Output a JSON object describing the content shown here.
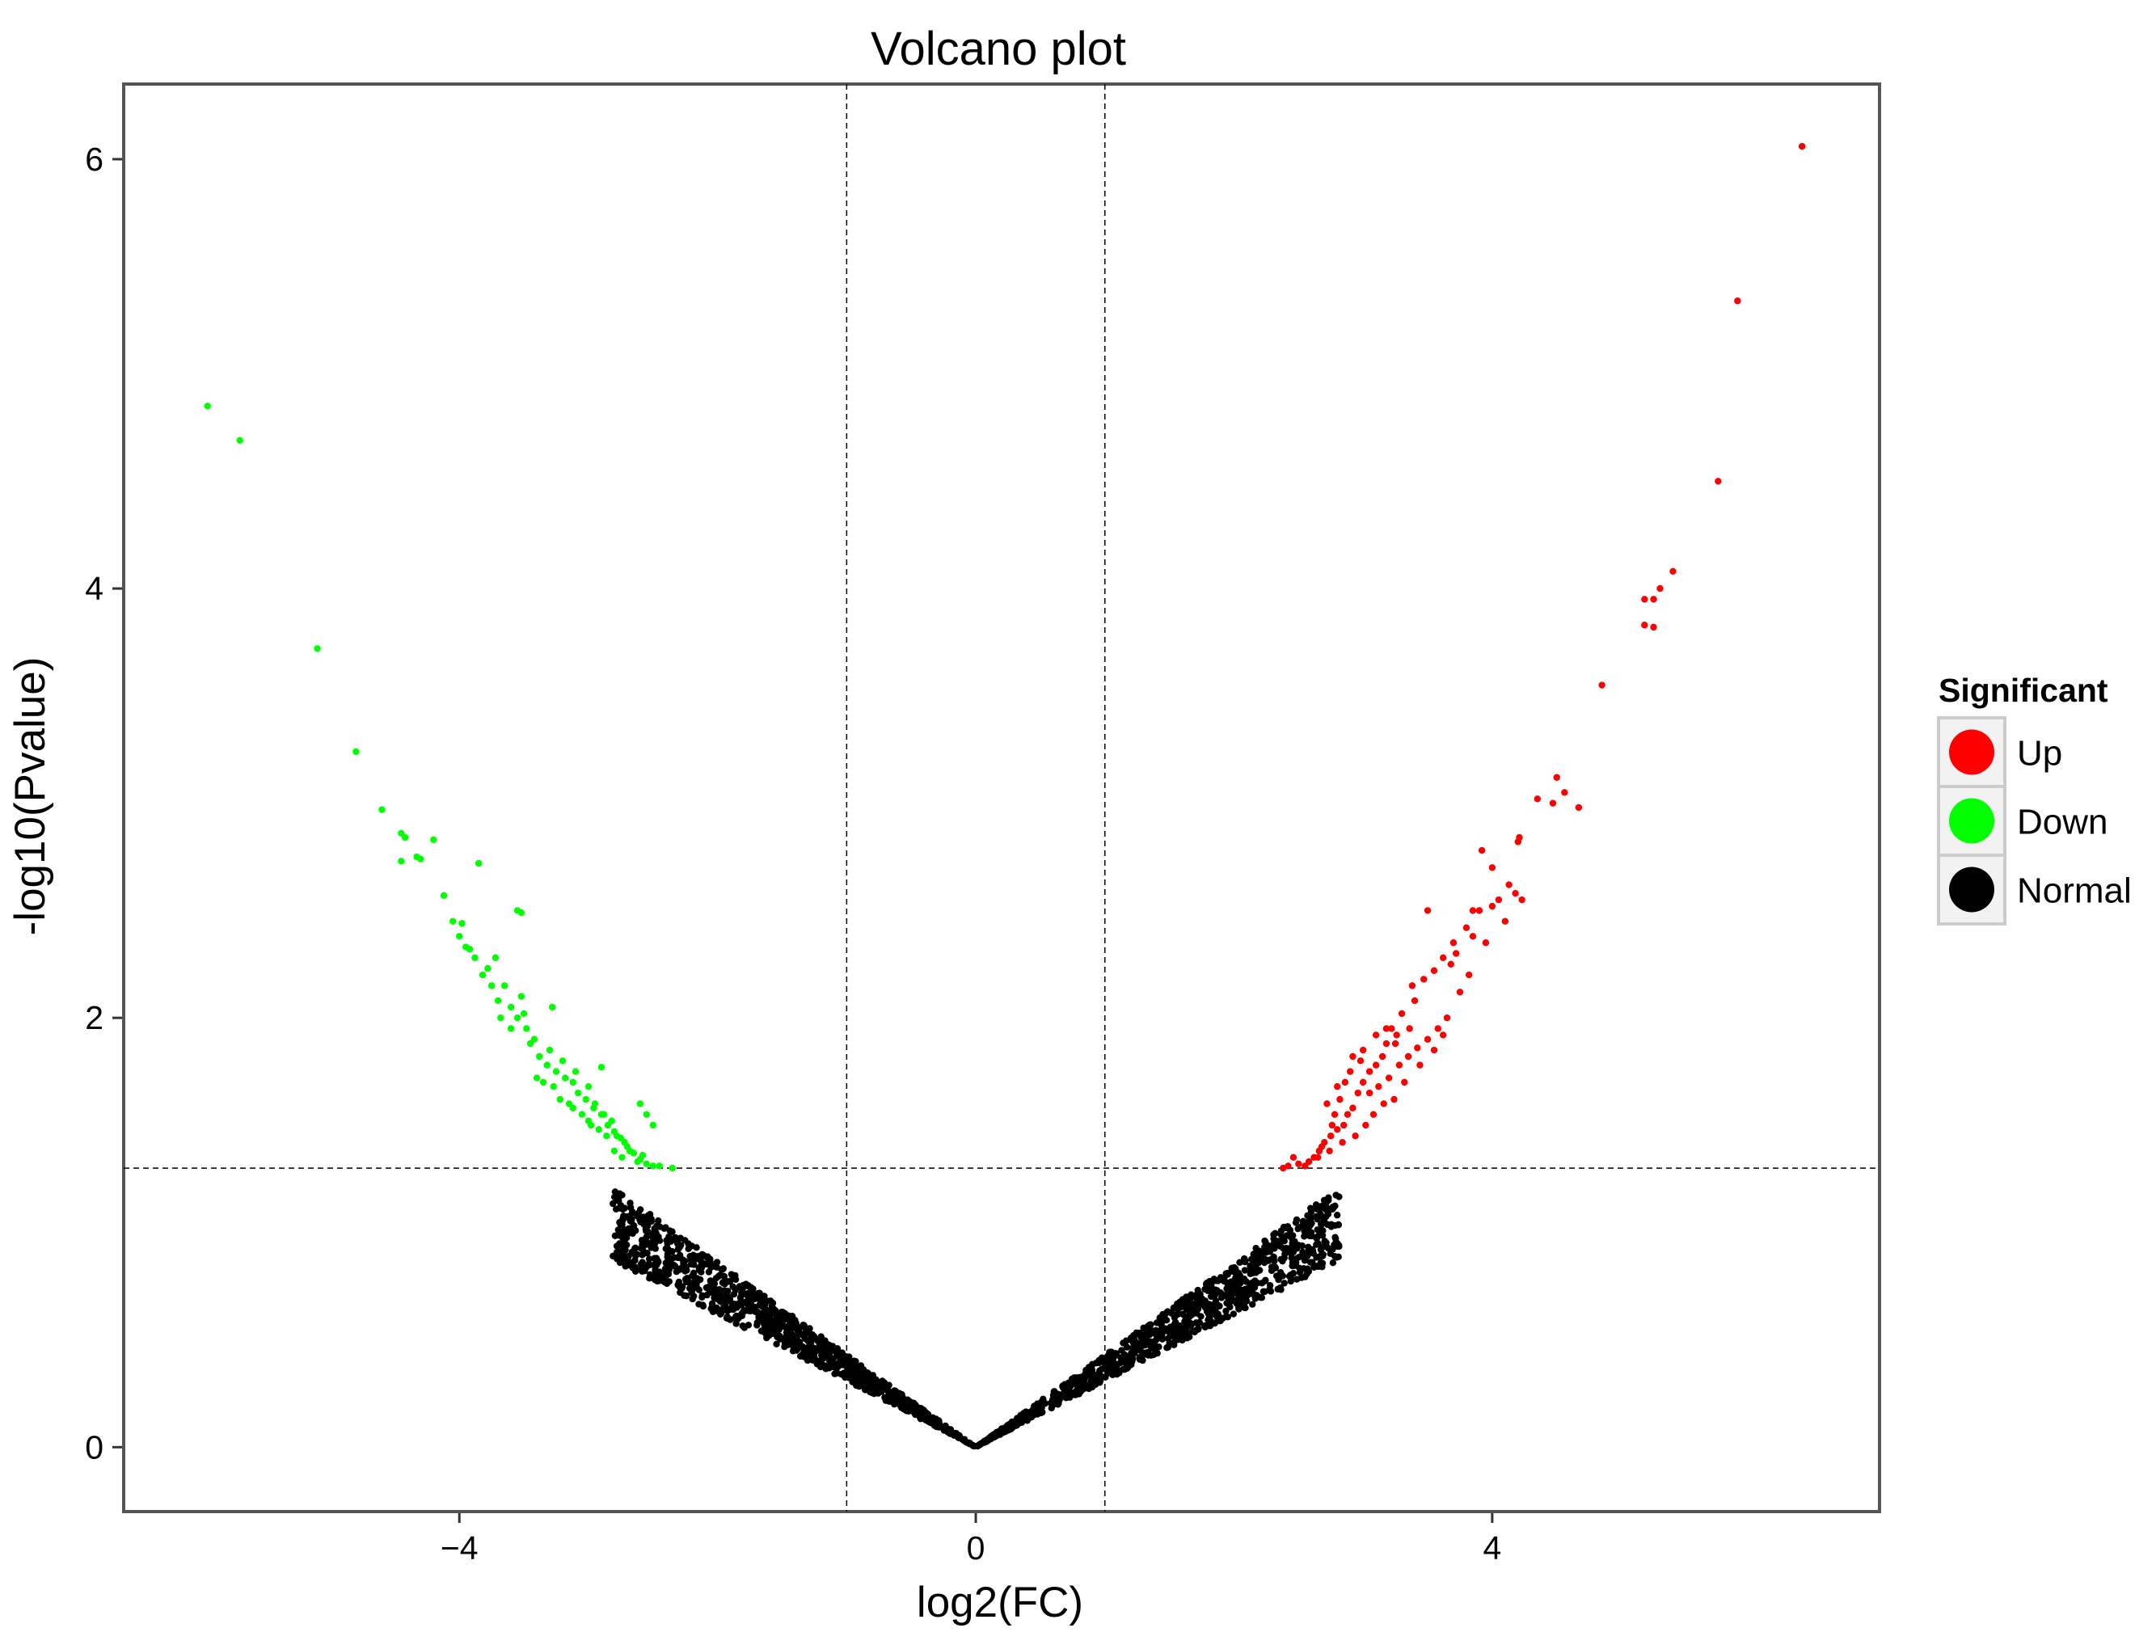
{
  "chart_data": {
    "type": "scatter",
    "title": "Volcano plot",
    "xlabel": "log2(FC)",
    "ylabel": "-log10(Pvalue)",
    "xlim": [
      -6.6,
      7.0
    ],
    "ylim": [
      -0.3,
      6.35
    ],
    "xticks": [
      -4,
      0,
      4
    ],
    "xtick_labels": [
      "−4",
      "0",
      "4"
    ],
    "yticks": [
      0,
      2,
      4,
      6
    ],
    "ytick_labels": [
      "0",
      "2",
      "4",
      "6"
    ],
    "grid": false,
    "thresholds": {
      "x": [
        -1,
        1
      ],
      "y": [
        1.3
      ]
    },
    "legend": {
      "title": "Significant",
      "position": "right",
      "entries": [
        {
          "label": "Up",
          "color": "#ff0000"
        },
        {
          "label": "Down",
          "color": "#00ff00"
        },
        {
          "label": "Normal",
          "color": "#000000"
        }
      ]
    },
    "series": [
      {
        "name": "Up",
        "color": "#ff0000",
        "points": [
          [
            6.4,
            6.06
          ],
          [
            5.9,
            5.34
          ],
          [
            5.75,
            4.5
          ],
          [
            5.4,
            4.08
          ],
          [
            5.3,
            4.0
          ],
          [
            5.25,
            3.95
          ],
          [
            5.18,
            3.95
          ],
          [
            5.25,
            3.82
          ],
          [
            5.18,
            3.83
          ],
          [
            4.85,
            3.55
          ],
          [
            4.67,
            2.98
          ],
          [
            4.56,
            3.05
          ],
          [
            4.5,
            3.12
          ],
          [
            4.47,
            3.0
          ],
          [
            4.35,
            3.02
          ],
          [
            4.21,
            2.84
          ],
          [
            4.2,
            2.82
          ],
          [
            4.23,
            2.55
          ],
          [
            4.18,
            2.58
          ],
          [
            4.13,
            2.62
          ],
          [
            4.05,
            2.55
          ],
          [
            4.0,
            2.52
          ],
          [
            3.92,
            2.78
          ],
          [
            3.9,
            2.5
          ],
          [
            3.85,
            2.38
          ],
          [
            3.8,
            2.42
          ],
          [
            3.72,
            2.3
          ],
          [
            3.68,
            2.25
          ],
          [
            3.62,
            2.28
          ],
          [
            3.5,
            2.5
          ],
          [
            3.47,
            2.18
          ],
          [
            3.4,
            2.08
          ],
          [
            3.36,
            1.95
          ],
          [
            3.3,
            2.02
          ],
          [
            3.26,
            1.92
          ],
          [
            3.22,
            1.95
          ],
          [
            3.18,
            1.88
          ],
          [
            3.15,
            1.82
          ],
          [
            3.1,
            1.78
          ],
          [
            3.05,
            1.75
          ],
          [
            3.0,
            1.7
          ],
          [
            2.96,
            1.65
          ],
          [
            2.92,
            1.58
          ],
          [
            2.88,
            1.55
          ],
          [
            2.85,
            1.5
          ],
          [
            2.8,
            1.48
          ],
          [
            2.75,
            1.45
          ],
          [
            2.7,
            1.42
          ],
          [
            2.66,
            1.38
          ],
          [
            2.62,
            1.35
          ],
          [
            2.58,
            1.33
          ],
          [
            2.55,
            1.31
          ],
          [
            2.5,
            1.32
          ],
          [
            2.46,
            1.35
          ],
          [
            2.42,
            1.31
          ],
          [
            2.38,
            1.3
          ],
          [
            2.72,
            1.6
          ],
          [
            2.78,
            1.55
          ],
          [
            2.82,
            1.62
          ],
          [
            2.9,
            1.75
          ],
          [
            2.98,
            1.8
          ],
          [
            3.05,
            1.65
          ],
          [
            3.12,
            1.68
          ],
          [
            3.2,
            1.72
          ],
          [
            3.28,
            1.78
          ],
          [
            3.35,
            1.82
          ],
          [
            3.42,
            1.86
          ],
          [
            3.5,
            1.9
          ],
          [
            3.58,
            1.95
          ],
          [
            3.65,
            2.0
          ],
          [
            3.75,
            2.12
          ],
          [
            3.82,
            2.2
          ],
          [
            3.95,
            2.35
          ],
          [
            4.1,
            2.45
          ],
          [
            2.65,
            1.35
          ],
          [
            2.68,
            1.4
          ],
          [
            2.74,
            1.38
          ],
          [
            2.84,
            1.42
          ],
          [
            2.94,
            1.45
          ],
          [
            3.02,
            1.5
          ],
          [
            3.08,
            1.55
          ],
          [
            3.16,
            1.6
          ],
          [
            3.24,
            1.62
          ],
          [
            3.32,
            1.7
          ],
          [
            3.44,
            1.78
          ],
          [
            3.55,
            1.85
          ],
          [
            3.62,
            1.92
          ],
          [
            3.1,
            1.92
          ],
          [
            3.18,
            1.95
          ],
          [
            3.25,
            1.88
          ],
          [
            3.0,
            1.85
          ],
          [
            2.92,
            1.82
          ],
          [
            2.86,
            1.7
          ],
          [
            2.8,
            1.68
          ],
          [
            2.76,
            1.5
          ],
          [
            3.38,
            2.15
          ],
          [
            3.55,
            2.22
          ],
          [
            3.7,
            2.35
          ],
          [
            3.85,
            2.5
          ],
          [
            4.0,
            2.7
          ]
        ]
      },
      {
        "name": "Down",
        "color": "#00ff00",
        "points": [
          [
            -5.95,
            4.85
          ],
          [
            -5.7,
            4.69
          ],
          [
            -5.1,
            3.72
          ],
          [
            -4.8,
            3.24
          ],
          [
            -4.6,
            2.97
          ],
          [
            -4.45,
            2.86
          ],
          [
            -4.42,
            2.84
          ],
          [
            -4.33,
            2.75
          ],
          [
            -4.3,
            2.74
          ],
          [
            -4.45,
            2.73
          ],
          [
            -4.2,
            2.83
          ],
          [
            -3.85,
            2.72
          ],
          [
            -4.12,
            2.57
          ],
          [
            -4.05,
            2.45
          ],
          [
            -3.98,
            2.44
          ],
          [
            -4.0,
            2.38
          ],
          [
            -3.55,
            2.5
          ],
          [
            -3.52,
            2.49
          ],
          [
            -3.92,
            2.32
          ],
          [
            -3.88,
            2.28
          ],
          [
            -3.72,
            2.28
          ],
          [
            -3.78,
            2.23
          ],
          [
            -3.65,
            2.15
          ],
          [
            -3.52,
            2.1
          ],
          [
            -3.5,
            2.02
          ],
          [
            -3.6,
            2.05
          ],
          [
            -3.55,
            2.0
          ],
          [
            -3.68,
            2.0
          ],
          [
            -3.48,
            1.95
          ],
          [
            -3.42,
            1.9
          ],
          [
            -3.28,
            2.05
          ],
          [
            -3.45,
            1.88
          ],
          [
            -3.38,
            1.82
          ],
          [
            -3.32,
            1.78
          ],
          [
            -3.25,
            1.75
          ],
          [
            -3.18,
            1.72
          ],
          [
            -3.12,
            1.7
          ],
          [
            -3.08,
            1.65
          ],
          [
            -3.02,
            1.62
          ],
          [
            -2.96,
            1.58
          ],
          [
            -2.9,
            1.55
          ],
          [
            -2.85,
            1.5
          ],
          [
            -2.8,
            1.47
          ],
          [
            -2.75,
            1.44
          ],
          [
            -2.7,
            1.4
          ],
          [
            -2.65,
            1.37
          ],
          [
            -2.6,
            1.34
          ],
          [
            -2.55,
            1.32
          ],
          [
            -2.5,
            1.31
          ],
          [
            -2.45,
            1.31
          ],
          [
            -2.35,
            1.3
          ],
          [
            -2.9,
            1.77
          ],
          [
            -2.6,
            1.6
          ],
          [
            -2.55,
            1.55
          ],
          [
            -2.5,
            1.5
          ],
          [
            -3.3,
            1.85
          ],
          [
            -3.2,
            1.8
          ],
          [
            -3.1,
            1.75
          ],
          [
            -3.0,
            1.68
          ],
          [
            -2.95,
            1.6
          ],
          [
            -2.88,
            1.55
          ],
          [
            -2.82,
            1.52
          ],
          [
            -2.78,
            1.45
          ],
          [
            -2.72,
            1.42
          ],
          [
            -2.68,
            1.38
          ],
          [
            -3.4,
            1.72
          ],
          [
            -3.35,
            1.7
          ],
          [
            -3.22,
            1.62
          ],
          [
            -3.15,
            1.6
          ],
          [
            -3.05,
            1.55
          ],
          [
            -3.0,
            1.52
          ],
          [
            -2.92,
            1.48
          ],
          [
            -2.86,
            1.45
          ],
          [
            -2.8,
            1.38
          ],
          [
            -2.74,
            1.35
          ],
          [
            -3.6,
            1.95
          ],
          [
            -3.7,
            2.08
          ],
          [
            -3.75,
            2.15
          ],
          [
            -3.82,
            2.2
          ],
          [
            -3.95,
            2.33
          ],
          [
            -3.27,
            1.68
          ],
          [
            -3.12,
            1.58
          ],
          [
            -2.98,
            1.5
          ],
          [
            -2.62,
            1.33
          ],
          [
            -2.58,
            1.36
          ]
        ]
      },
      {
        "name": "Normal",
        "color": "#000000",
        "generated": "dense V-shaped band of ~2000 points following -log10(Pvalue) ≈ 0.30–0.44 × |log2(FC)| between log2(FC) = -2.8 and 2.8, all below -log10(Pvalue) = 1.3"
      }
    ]
  }
}
